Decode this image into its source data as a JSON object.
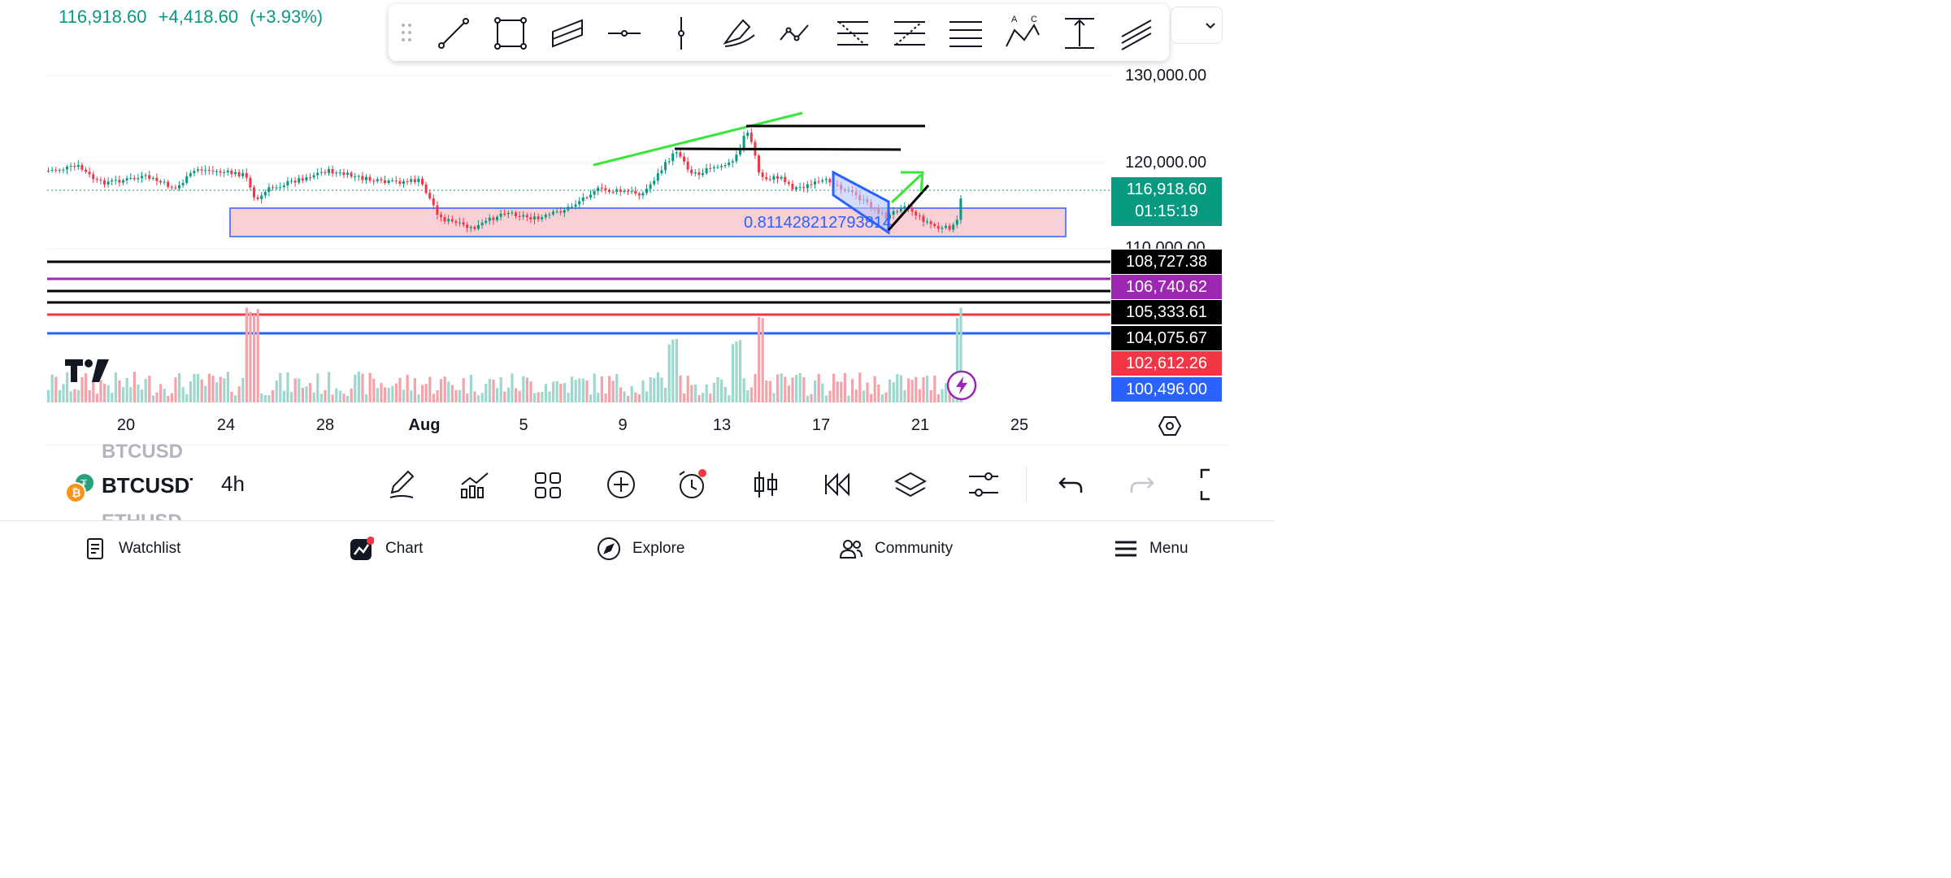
{
  "quote": {
    "price": "116,918.60",
    "change": "+4,418.60",
    "change_pct": "(+3.93%)"
  },
  "drawing_tools": [
    "trend-line",
    "rectangle",
    "parallel-channel",
    "horizontal-ray",
    "vertical-line",
    "highlighter",
    "path",
    "fib-retracement",
    "fib-extension",
    "horizontal-lines",
    "abc-pattern",
    "price-range",
    "pitchfork"
  ],
  "abc_labels": {
    "a": "A",
    "c": "C"
  },
  "y_axis": {
    "labels": [
      "130,000.00",
      "120,000.00",
      "110,000.00"
    ]
  },
  "current_price": {
    "value": "116,918.60",
    "countdown": "01:15:19",
    "color": "#089981"
  },
  "levels": [
    {
      "value": "108,727.38",
      "color": "#000000"
    },
    {
      "value": "106,740.62",
      "color": "#9c27b0"
    },
    {
      "value": "105,333.61",
      "color": "#000000"
    },
    {
      "value": "104,075.67",
      "color": "#000000"
    },
    {
      "value": "102,612.26",
      "color": "#f23645"
    },
    {
      "value": "100,496.00",
      "color": "#2962ff"
    }
  ],
  "zone_text": "0.811428212793814",
  "x_axis": {
    "labels": [
      "20",
      "24",
      "28",
      "Aug",
      "5",
      "9",
      "13",
      "17",
      "21",
      "25"
    ]
  },
  "symbol": {
    "current": "BTCUSDT",
    "prev": "BTCUSD",
    "next": "ETHUSD",
    "interval": "4h"
  },
  "nav": {
    "watchlist": "Watchlist",
    "chart": "Chart",
    "explore": "Explore",
    "community": "Community",
    "menu": "Menu"
  }
}
